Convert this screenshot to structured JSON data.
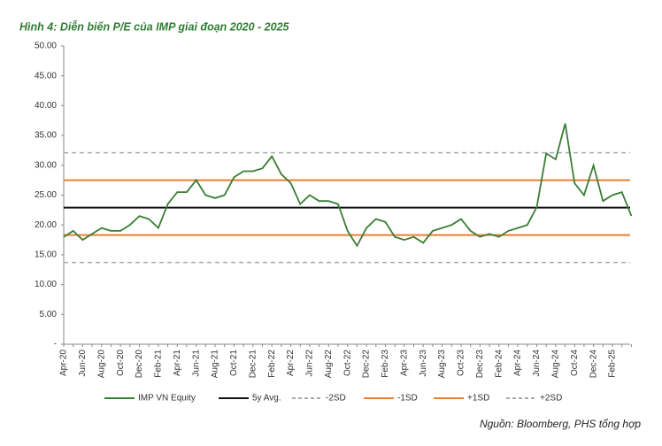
{
  "chart_data": {
    "type": "line",
    "title": "Hình 4: Diễn biến P/E của IMP giai đoạn 2020 - 2025",
    "source": "Nguồn: Bloomberg, PHS tổng hợp",
    "categories": [
      "Apr-20",
      null,
      "Jun-20",
      null,
      "Aug-20",
      null,
      "Oct-20",
      null,
      "Dec-20",
      null,
      "Feb-21",
      null,
      "Apr-21",
      null,
      "Jun-21",
      null,
      "Aug-21",
      null,
      "Oct-21",
      null,
      "Dec-21",
      null,
      "Feb-22",
      null,
      "Apr-22",
      null,
      "Jun-22",
      null,
      "Aug-22",
      null,
      "Oct-22",
      null,
      "Dec-22",
      null,
      "Feb-23",
      null,
      "Apr-23",
      null,
      "Jun-23",
      null,
      "Aug-23",
      null,
      "Oct-23",
      null,
      "Dec-23",
      null,
      "Feb-24",
      null,
      "Apr-24",
      null,
      "Jun-24",
      null,
      "Aug-24",
      null,
      "Oct-24",
      null,
      "Dec-24",
      null,
      "Feb-25",
      null,
      null
    ],
    "series": [
      {
        "name": "IMP VN Equity",
        "color": "#3a7d34",
        "values": [
          18,
          19,
          17.5,
          18.5,
          19.5,
          19,
          19,
          20,
          21.5,
          21,
          19.5,
          23.5,
          25.5,
          25.5,
          27.5,
          25,
          24.5,
          25,
          28,
          29,
          29,
          29.5,
          31.5,
          28.5,
          27,
          23.5,
          25,
          24,
          24,
          23.5,
          19,
          16.5,
          19.5,
          21,
          20.5,
          18,
          17.5,
          18,
          17,
          19,
          19.5,
          20,
          21,
          19,
          18,
          18.5,
          18,
          19,
          19.5,
          20,
          23,
          32,
          31,
          37,
          27,
          25,
          30,
          24,
          25,
          25.5,
          21.5
        ]
      }
    ],
    "lines": [
      {
        "name": "5y Avg.",
        "color": "#111111",
        "dashed": false,
        "value": 22.9
      },
      {
        "name": "-2SD",
        "color": "#aaaaaa",
        "dashed": true,
        "value": 13.7
      },
      {
        "name": "-1SD",
        "color": "#ed7d31",
        "dashed": false,
        "value": 18.3
      },
      {
        "name": "+1SD",
        "color": "#ed7d31",
        "dashed": false,
        "value": 27.5
      },
      {
        "name": "+2SD",
        "color": "#aaaaaa",
        "dashed": true,
        "value": 32.1
      }
    ],
    "ylim": [
      0,
      50
    ],
    "yticks": [
      {
        "value": 0,
        "label": "-"
      },
      {
        "value": 5,
        "label": "5.00"
      },
      {
        "value": 10,
        "label": "10.00"
      },
      {
        "value": 15,
        "label": "15.00"
      },
      {
        "value": 20,
        "label": "20.00"
      },
      {
        "value": 25,
        "label": "25.00"
      },
      {
        "value": 30,
        "label": "30.00"
      },
      {
        "value": 35,
        "label": "35.00"
      },
      {
        "value": 40,
        "label": "40.00"
      },
      {
        "value": 45,
        "label": "45.00"
      },
      {
        "value": 50,
        "label": "50.00"
      }
    ]
  }
}
